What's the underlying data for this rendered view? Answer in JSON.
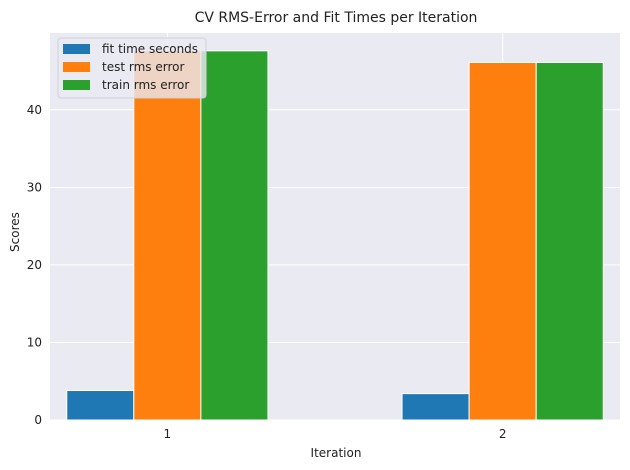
{
  "chart_data": {
    "type": "bar",
    "title": "CV RMS-Error and Fit Times per Iteration",
    "xlabel": "Iteration",
    "ylabel": "Scores",
    "categories": [
      "1",
      "2"
    ],
    "series": [
      {
        "name": "fit time seconds",
        "values": [
          3.8,
          3.4
        ],
        "color": "#1f77b4"
      },
      {
        "name": "test rms error",
        "values": [
          47.6,
          46.1
        ],
        "color": "#ff7f0e"
      },
      {
        "name": "train rms error",
        "values": [
          47.6,
          46.1
        ],
        "color": "#2ca02c"
      }
    ],
    "ylim": [
      0,
      49.9
    ],
    "yticks": [
      0,
      10,
      20,
      30,
      40
    ],
    "grid": true,
    "legend": "top-left",
    "background": "#eaeaf2"
  }
}
